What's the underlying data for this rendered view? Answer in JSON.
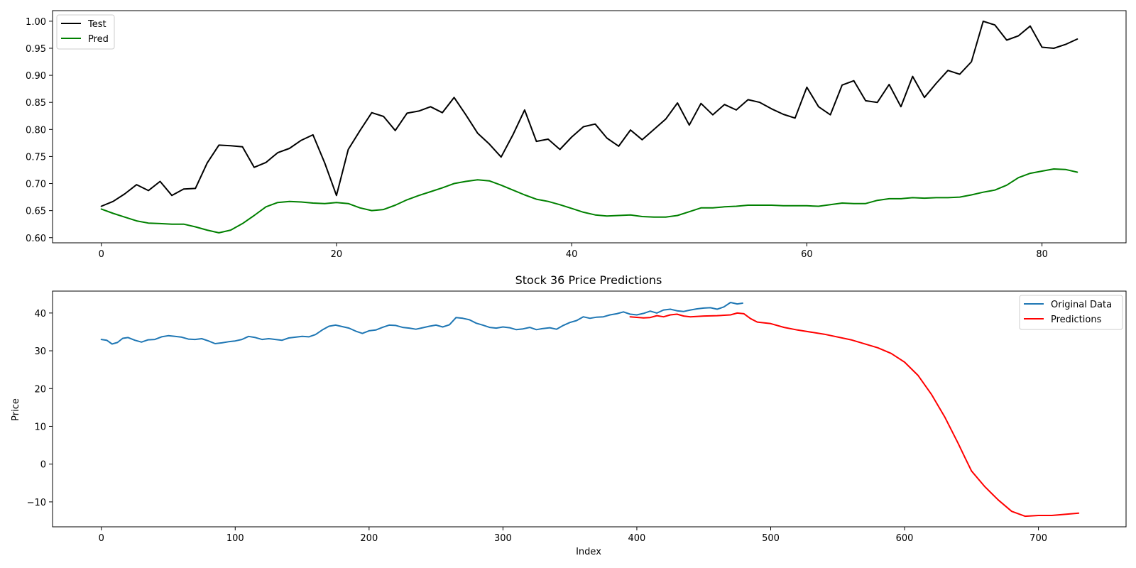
{
  "chart_data": [
    {
      "type": "line",
      "title": "",
      "xlabel": "",
      "ylabel": "",
      "xlim": [
        -4.15,
        87.15
      ],
      "ylim": [
        0.5905,
        1.0195
      ],
      "x_ticks": [
        0,
        20,
        40,
        60,
        80
      ],
      "y_ticks": [
        0.6,
        0.65,
        0.7,
        0.75,
        0.8,
        0.85,
        0.9,
        0.95,
        1.0
      ],
      "y_tick_labels": [
        "0.60",
        "0.65",
        "0.70",
        "0.75",
        "0.80",
        "0.85",
        "0.90",
        "0.95",
        "1.00"
      ],
      "grid": false,
      "legend_position": "upper-left",
      "series": [
        {
          "name": "Test",
          "color": "#000000",
          "values": [
            0.658,
            0.667,
            0.681,
            0.698,
            0.687,
            0.704,
            0.678,
            0.69,
            0.691,
            0.738,
            0.771,
            0.77,
            0.768,
            0.73,
            0.739,
            0.757,
            0.765,
            0.78,
            0.79,
            0.738,
            0.678,
            0.763,
            0.798,
            0.831,
            0.824,
            0.798,
            0.83,
            0.834,
            0.842,
            0.831,
            0.859,
            0.827,
            0.793,
            0.773,
            0.749,
            0.79,
            0.836,
            0.778,
            0.782,
            0.763,
            0.786,
            0.805,
            0.81,
            0.784,
            0.769,
            0.799,
            0.781,
            0.8,
            0.819,
            0.849,
            0.808,
            0.848,
            0.827,
            0.846,
            0.836,
            0.855,
            0.85,
            0.838,
            0.828,
            0.821,
            0.878,
            0.842,
            0.827,
            0.882,
            0.89,
            0.853,
            0.85,
            0.883,
            0.842,
            0.898,
            0.859,
            0.885,
            0.909,
            0.902,
            0.925,
            1.0,
            0.993,
            0.965,
            0.973,
            0.991,
            0.952,
            0.95,
            0.957,
            0.967
          ]
        },
        {
          "name": "Pred",
          "color": "#008000",
          "values": [
            0.653,
            0.645,
            0.638,
            0.631,
            0.627,
            0.626,
            0.625,
            0.625,
            0.62,
            0.614,
            0.609,
            0.614,
            0.626,
            0.641,
            0.657,
            0.665,
            0.667,
            0.666,
            0.664,
            0.663,
            0.665,
            0.663,
            0.655,
            0.65,
            0.652,
            0.66,
            0.67,
            0.678,
            0.685,
            0.692,
            0.7,
            0.704,
            0.707,
            0.705,
            0.697,
            0.688,
            0.679,
            0.671,
            0.667,
            0.661,
            0.654,
            0.647,
            0.642,
            0.64,
            0.641,
            0.642,
            0.639,
            0.638,
            0.638,
            0.641,
            0.648,
            0.655,
            0.655,
            0.657,
            0.658,
            0.66,
            0.66,
            0.66,
            0.659,
            0.659,
            0.659,
            0.658,
            0.661,
            0.664,
            0.663,
            0.663,
            0.669,
            0.672,
            0.672,
            0.674,
            0.673,
            0.674,
            0.674,
            0.675,
            0.679,
            0.684,
            0.688,
            0.697,
            0.711,
            0.719,
            0.723,
            0.727,
            0.726,
            0.721
          ]
        }
      ]
    },
    {
      "type": "line",
      "title": "Stock 36 Price Predictions",
      "xlabel": "Index",
      "ylabel": "Price",
      "xlim": [
        -36.45,
        765.45
      ],
      "ylim": [
        -16.6,
        45.8
      ],
      "x_ticks": [
        0,
        100,
        200,
        300,
        400,
        500,
        600,
        700
      ],
      "y_ticks": [
        -10,
        0,
        10,
        20,
        30,
        40
      ],
      "y_tick_labels": [
        "−10",
        "0",
        "10",
        "20",
        "30",
        "40"
      ],
      "grid": false,
      "legend_position": "upper-right",
      "series": [
        {
          "name": "Original Data",
          "color": "#1f77b4",
          "points": [
            [
              0,
              33.0
            ],
            [
              4,
              32.8
            ],
            [
              8,
              31.8
            ],
            [
              12,
              32.2
            ],
            [
              16,
              33.3
            ],
            [
              20,
              33.5
            ],
            [
              25,
              32.8
            ],
            [
              30,
              32.3
            ],
            [
              35,
              32.9
            ],
            [
              40,
              33.0
            ],
            [
              45,
              33.7
            ],
            [
              50,
              34.0
            ],
            [
              55,
              33.8
            ],
            [
              60,
              33.6
            ],
            [
              65,
              33.1
            ],
            [
              70,
              33.0
            ],
            [
              75,
              33.2
            ],
            [
              80,
              32.6
            ],
            [
              85,
              31.9
            ],
            [
              90,
              32.1
            ],
            [
              95,
              32.4
            ],
            [
              100,
              32.6
            ],
            [
              105,
              33.0
            ],
            [
              110,
              33.8
            ],
            [
              115,
              33.5
            ],
            [
              120,
              33.0
            ],
            [
              125,
              33.2
            ],
            [
              130,
              33.0
            ],
            [
              135,
              32.8
            ],
            [
              140,
              33.4
            ],
            [
              145,
              33.6
            ],
            [
              150,
              33.8
            ],
            [
              155,
              33.7
            ],
            [
              160,
              34.3
            ],
            [
              165,
              35.5
            ],
            [
              170,
              36.5
            ],
            [
              175,
              36.8
            ],
            [
              180,
              36.4
            ],
            [
              185,
              36.0
            ],
            [
              190,
              35.2
            ],
            [
              195,
              34.6
            ],
            [
              200,
              35.3
            ],
            [
              205,
              35.5
            ],
            [
              210,
              36.2
            ],
            [
              215,
              36.8
            ],
            [
              220,
              36.7
            ],
            [
              225,
              36.2
            ],
            [
              230,
              36.0
            ],
            [
              235,
              35.7
            ],
            [
              240,
              36.1
            ],
            [
              245,
              36.5
            ],
            [
              250,
              36.8
            ],
            [
              255,
              36.3
            ],
            [
              260,
              36.9
            ],
            [
              265,
              38.8
            ],
            [
              270,
              38.6
            ],
            [
              275,
              38.2
            ],
            [
              280,
              37.3
            ],
            [
              285,
              36.8
            ],
            [
              290,
              36.2
            ],
            [
              295,
              36.0
            ],
            [
              300,
              36.3
            ],
            [
              305,
              36.1
            ],
            [
              310,
              35.6
            ],
            [
              315,
              35.8
            ],
            [
              320,
              36.2
            ],
            [
              325,
              35.6
            ],
            [
              330,
              35.9
            ],
            [
              335,
              36.1
            ],
            [
              340,
              35.7
            ],
            [
              345,
              36.7
            ],
            [
              350,
              37.5
            ],
            [
              355,
              38.0
            ],
            [
              360,
              39.0
            ],
            [
              365,
              38.6
            ],
            [
              370,
              38.9
            ],
            [
              375,
              39.0
            ],
            [
              380,
              39.5
            ],
            [
              385,
              39.8
            ],
            [
              390,
              40.3
            ],
            [
              395,
              39.7
            ],
            [
              400,
              39.5
            ],
            [
              405,
              39.9
            ],
            [
              410,
              40.5
            ],
            [
              415,
              40.0
            ],
            [
              420,
              40.8
            ],
            [
              425,
              41.0
            ],
            [
              430,
              40.6
            ],
            [
              435,
              40.4
            ],
            [
              440,
              40.8
            ],
            [
              445,
              41.1
            ],
            [
              450,
              41.3
            ],
            [
              455,
              41.4
            ],
            [
              460,
              41.0
            ],
            [
              465,
              41.6
            ],
            [
              470,
              42.8
            ],
            [
              475,
              42.4
            ],
            [
              479,
              42.6
            ]
          ]
        },
        {
          "name": "Predictions",
          "color": "#ff0000",
          "points": [
            [
              395,
              39.0
            ],
            [
              405,
              38.7
            ],
            [
              410,
              38.8
            ],
            [
              415,
              39.3
            ],
            [
              420,
              39.0
            ],
            [
              425,
              39.5
            ],
            [
              430,
              39.7
            ],
            [
              435,
              39.2
            ],
            [
              440,
              39.0
            ],
            [
              450,
              39.2
            ],
            [
              460,
              39.3
            ],
            [
              470,
              39.5
            ],
            [
              475,
              40.0
            ],
            [
              480,
              39.8
            ],
            [
              485,
              38.5
            ],
            [
              490,
              37.6
            ],
            [
              500,
              37.2
            ],
            [
              510,
              36.2
            ],
            [
              520,
              35.5
            ],
            [
              540,
              34.4
            ],
            [
              560,
              32.9
            ],
            [
              580,
              30.8
            ],
            [
              590,
              29.3
            ],
            [
              600,
              27.0
            ],
            [
              610,
              23.5
            ],
            [
              620,
              18.5
            ],
            [
              630,
              12.5
            ],
            [
              640,
              5.5
            ],
            [
              645,
              1.8
            ],
            [
              650,
              -1.8
            ],
            [
              660,
              -6.0
            ],
            [
              670,
              -9.5
            ],
            [
              680,
              -12.5
            ],
            [
              690,
              -13.8
            ],
            [
              700,
              -13.6
            ],
            [
              710,
              -13.6
            ],
            [
              720,
              -13.3
            ],
            [
              730,
              -13.0
            ]
          ]
        }
      ]
    }
  ]
}
